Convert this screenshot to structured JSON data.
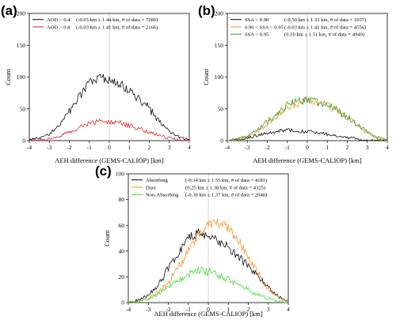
{
  "chart_data": [
    {
      "panel": "(a)",
      "type": "line",
      "xlabel": "AEH difference (GEMS-CALIOP) [km]",
      "ylabel": "Count",
      "xlim": [
        -4,
        4
      ],
      "ylim": [
        0,
        200
      ],
      "xticks": [
        -4,
        -3,
        -2,
        -1,
        0,
        1,
        2,
        3,
        4
      ],
      "yticks": [
        0,
        50,
        100,
        150,
        200
      ],
      "legend_position": "top-left",
      "x": [
        -4.0,
        -3.5,
        -3.0,
        -2.5,
        -2.0,
        -1.5,
        -1.0,
        -0.5,
        0.0,
        0.5,
        1.0,
        1.5,
        2.0,
        2.5,
        3.0,
        3.5,
        4.0
      ],
      "series": [
        {
          "name": "AOD > 0.4 (-0.03 km ± 1.44 km, # of data = 7280)",
          "label": "AOD > 0.4",
          "stats": "(-0.03 km ± 1.44 km, # of data = 7280)",
          "color": "#000000",
          "values": [
            1,
            4,
            10,
            25,
            45,
            68,
            90,
            100,
            95,
            90,
            78,
            65,
            50,
            30,
            15,
            5,
            1
          ]
        },
        {
          "name": "AOD > 0.8 (-0.03 km ± 1.41 km, # of data = 2166)",
          "label": "AOD > 0.8",
          "stats": "(-0.03 km ± 1.41 km, # of data = 2166)",
          "color": "#e41a1c",
          "values": [
            0,
            1,
            3,
            7,
            14,
            20,
            27,
            30,
            30,
            28,
            24,
            19,
            13,
            8,
            4,
            1,
            0
          ]
        }
      ]
    },
    {
      "panel": "(b)",
      "type": "line",
      "xlabel": "AEH difference (GEMS-CALIOP) [km]",
      "ylabel": "Count",
      "xlim": [
        -4,
        4
      ],
      "ylim": [
        0,
        200
      ],
      "xticks": [
        -4,
        -3,
        -2,
        -1,
        0,
        1,
        2,
        3,
        4
      ],
      "yticks": [
        0,
        50,
        100,
        150,
        200
      ],
      "legend_position": "top-left",
      "x": [
        -4.0,
        -3.5,
        -3.0,
        -2.5,
        -2.0,
        -1.5,
        -1.0,
        -0.5,
        0.0,
        0.5,
        1.0,
        1.5,
        2.0,
        2.5,
        3.0,
        3.5,
        4.0
      ],
      "series": [
        {
          "name": "SSA < 0.90 (-0.50 km ± 1.33 km, # of data = 1037)",
          "label": "SSA < 0.90",
          "stats": "(-0.50 km ± 1.33 km, # of data = 1037)",
          "color": "#000000",
          "values": [
            0,
            2,
            4,
            8,
            12,
            15,
            16,
            15,
            14,
            12,
            10,
            7,
            5,
            3,
            1,
            0,
            0
          ]
        },
        {
          "name": "0.90 < SSA < 0.95 (-0.03 km ± 1.41 km, # of data = 4556)",
          "label": "0.90 < SSA < 0.95",
          "stats": "(-0.03 km ± 1.41 km, # of data = 4556)",
          "color": "#ff8c1a",
          "values": [
            0,
            2,
            6,
            14,
            26,
            40,
            52,
            60,
            63,
            60,
            55,
            46,
            36,
            24,
            12,
            4,
            1
          ]
        },
        {
          "name": "SSA > 0.95 (0.10 km ± 1.51 km, # of data = 4949)",
          "label": "SSA > 0.95",
          "stats": "(0.10 km ± 1.51 km, # of data = 4949)",
          "color": "#2ca02c",
          "values": [
            0,
            3,
            8,
            18,
            30,
            43,
            55,
            62,
            65,
            62,
            57,
            48,
            38,
            26,
            14,
            5,
            1
          ]
        }
      ]
    },
    {
      "panel": "(c)",
      "type": "line",
      "xlabel": "AEH difference (GEMS-CALIOP) [km]",
      "ylabel": "Count",
      "xlim": [
        -4,
        4
      ],
      "ylim": [
        0,
        100
      ],
      "xticks": [
        -4,
        -3,
        -2,
        -1,
        0,
        1,
        2,
        3,
        4
      ],
      "yticks": [
        0,
        20,
        40,
        60,
        80,
        100
      ],
      "legend_position": "top-left",
      "x": [
        -4.0,
        -3.5,
        -3.0,
        -2.5,
        -2.0,
        -1.5,
        -1.0,
        -0.5,
        0.0,
        0.5,
        1.0,
        1.5,
        2.0,
        2.5,
        3.0,
        3.5,
        4.0
      ],
      "series": [
        {
          "name": "Absorbing (-0.14 km ± 1.55 km, # of data = 4181)",
          "label": "Absorbing",
          "stats": "(-0.14 km ± 1.55 km, # of data = 4181)",
          "color": "#000000",
          "values": [
            0,
            2,
            6,
            14,
            26,
            38,
            50,
            54,
            52,
            48,
            43,
            36,
            28,
            20,
            12,
            5,
            1
          ]
        },
        {
          "name": "Dust (0.25 km ± 1.38 km, # of data = 4325)",
          "label": "Dust",
          "stats": "(0.25 km ± 1.38 km, # of data = 4325)",
          "color": "#ff8c1a",
          "values": [
            0,
            1,
            3,
            8,
            16,
            27,
            40,
            52,
            60,
            62,
            58,
            48,
            35,
            22,
            11,
            4,
            1
          ]
        },
        {
          "name": "Non-Absorbing (-0.30 km ± 1.37 km, # of data = 2048)",
          "label": "Non-Absorbing",
          "stats": "(-0.30 km ± 1.37 km, # of data = 2048)",
          "color": "#33dd33",
          "values": [
            0,
            1,
            3,
            7,
            12,
            17,
            22,
            25,
            24,
            21,
            18,
            14,
            10,
            6,
            3,
            1,
            0
          ]
        }
      ]
    }
  ]
}
